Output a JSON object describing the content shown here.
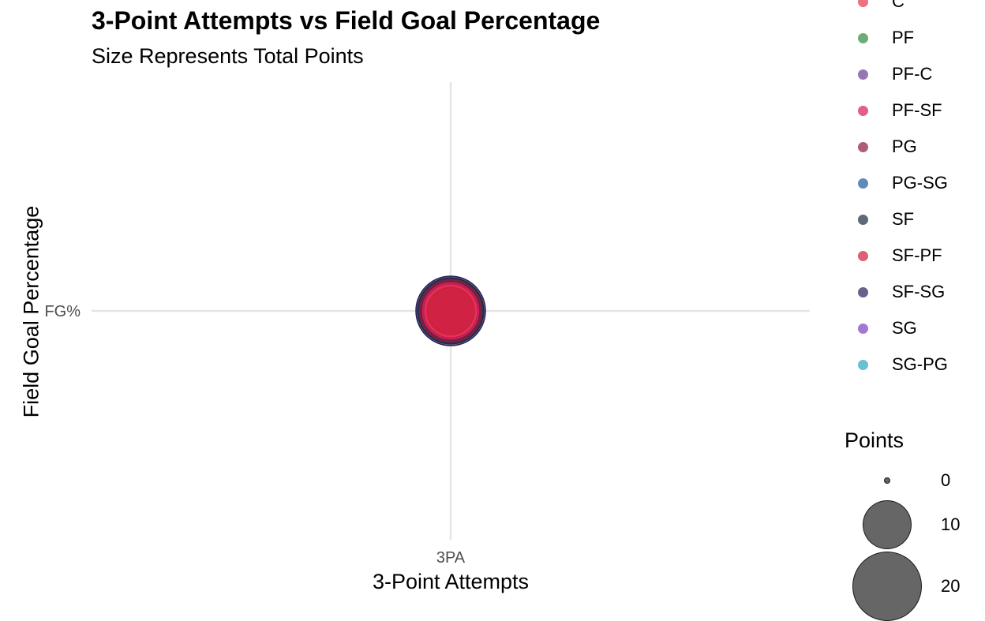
{
  "chart_data": {
    "type": "scatter",
    "title": "3-Point Attempts vs Field Goal Percentage",
    "subtitle": "Size Represents Total Points",
    "xlabel": "3-Point Attempts",
    "ylabel": "Field Goal Percentage",
    "x_ticks": [
      "3PA"
    ],
    "y_ticks": [
      "FG%"
    ],
    "grid": true,
    "points": [
      {
        "x": "3PA",
        "y": "FG%",
        "group": "SF-SG",
        "points": 20
      },
      {
        "x": "3PA",
        "y": "FG%",
        "group": "SF",
        "points": 18
      },
      {
        "x": "3PA",
        "y": "FG%",
        "group": "PG",
        "points": 16
      },
      {
        "x": "3PA",
        "y": "FG%",
        "group": "PF-SF",
        "points": 13
      },
      {
        "x": "3PA",
        "y": "FG%",
        "group": "C",
        "points": 11
      },
      {
        "x": "3PA",
        "y": "FG%",
        "group": "SF-PF",
        "points": 9
      }
    ],
    "color_legend": {
      "items": [
        {
          "label": "C",
          "color": "#e8354f"
        },
        {
          "label": "PF",
          "color": "#2e8b3e"
        },
        {
          "label": "PF-C",
          "color": "#6a3d9a"
        },
        {
          "label": "PF-SF",
          "color": "#d81b60"
        },
        {
          "label": "PG",
          "color": "#8b1a3a"
        },
        {
          "label": "PG-SG",
          "color": "#1f5b99"
        },
        {
          "label": "SF",
          "color": "#1c2a3e"
        },
        {
          "label": "SF-PF",
          "color": "#cc1f3d"
        },
        {
          "label": "SF-SG",
          "color": "#2a1f5c"
        },
        {
          "label": "SG",
          "color": "#7b3fbf"
        },
        {
          "label": "SG-PG",
          "color": "#2ba6c0"
        }
      ]
    },
    "size_legend": {
      "title": "Points",
      "items": [
        {
          "label": "0",
          "value": 0
        },
        {
          "label": "10",
          "value": 10
        },
        {
          "label": "20",
          "value": 20
        }
      ]
    }
  }
}
